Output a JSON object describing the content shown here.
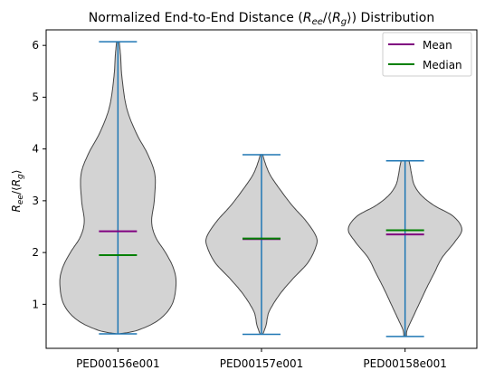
{
  "chart_data": {
    "type": "violin",
    "title": "Normalized End-to-End Distance (R_ee/⟨R_g⟩) Distribution",
    "title_parts": {
      "prefix": "Normalized End-to-End Distance (",
      "num": "R",
      "num_sub": "ee",
      "slash": "/⟨",
      "den": "R",
      "den_sub": "g",
      "suffix": "⟩) Distribution"
    },
    "ylabel": "R_ee/⟨R_g⟩",
    "ylabel_parts": {
      "a": "R",
      "a_sub": "ee",
      "mid": "/⟨",
      "b": "R",
      "b_sub": "g",
      "end": "⟩"
    },
    "categories": [
      "PED00156e001",
      "PED00157e001",
      "PED00158e001"
    ],
    "ylim": [
      0.15,
      6.3
    ],
    "yticks": [
      1,
      2,
      3,
      4,
      5,
      6
    ],
    "grid": false,
    "legend_position": "top-right",
    "legend": [
      {
        "label": "Mean",
        "color": "#800080"
      },
      {
        "label": "Median",
        "color": "#008000"
      }
    ],
    "colors": {
      "body_fill": "#d3d3d3",
      "body_edge": "#444444",
      "whisker": "#1f77b4"
    },
    "series": [
      {
        "category": "PED00156e001",
        "min": 0.43,
        "max": 6.07,
        "mean": 2.41,
        "median": 1.95,
        "density": [
          [
            0.43,
            0.02
          ],
          [
            0.5,
            0.3
          ],
          [
            0.7,
            0.62
          ],
          [
            1.0,
            0.82
          ],
          [
            1.4,
            0.88
          ],
          [
            1.7,
            0.84
          ],
          [
            2.0,
            0.72
          ],
          [
            2.3,
            0.57
          ],
          [
            2.6,
            0.51
          ],
          [
            3.0,
            0.55
          ],
          [
            3.5,
            0.56
          ],
          [
            3.9,
            0.45
          ],
          [
            4.3,
            0.28
          ],
          [
            4.8,
            0.13
          ],
          [
            5.4,
            0.06
          ],
          [
            5.8,
            0.04
          ],
          [
            6.07,
            0.02
          ]
        ]
      },
      {
        "category": "PED00157e001",
        "min": 0.42,
        "max": 3.89,
        "mean": 2.26,
        "median": 2.27,
        "density": [
          [
            0.42,
            0.02
          ],
          [
            0.6,
            0.07
          ],
          [
            0.75,
            0.09
          ],
          [
            0.9,
            0.13
          ],
          [
            1.2,
            0.28
          ],
          [
            1.5,
            0.48
          ],
          [
            1.8,
            0.7
          ],
          [
            2.1,
            0.82
          ],
          [
            2.3,
            0.83
          ],
          [
            2.6,
            0.68
          ],
          [
            2.9,
            0.47
          ],
          [
            3.2,
            0.29
          ],
          [
            3.5,
            0.13
          ],
          [
            3.75,
            0.05
          ],
          [
            3.89,
            0.02
          ]
        ]
      },
      {
        "category": "PED00158e001",
        "min": 0.38,
        "max": 3.77,
        "mean": 2.35,
        "median": 2.43,
        "density": [
          [
            0.38,
            0.02
          ],
          [
            0.5,
            0.03
          ],
          [
            0.7,
            0.1
          ],
          [
            1.0,
            0.21
          ],
          [
            1.3,
            0.32
          ],
          [
            1.6,
            0.44
          ],
          [
            1.9,
            0.56
          ],
          [
            2.2,
            0.75
          ],
          [
            2.45,
            0.86
          ],
          [
            2.7,
            0.73
          ],
          [
            2.9,
            0.45
          ],
          [
            3.1,
            0.25
          ],
          [
            3.3,
            0.14
          ],
          [
            3.5,
            0.1
          ],
          [
            3.65,
            0.08
          ],
          [
            3.77,
            0.06
          ]
        ]
      }
    ]
  }
}
